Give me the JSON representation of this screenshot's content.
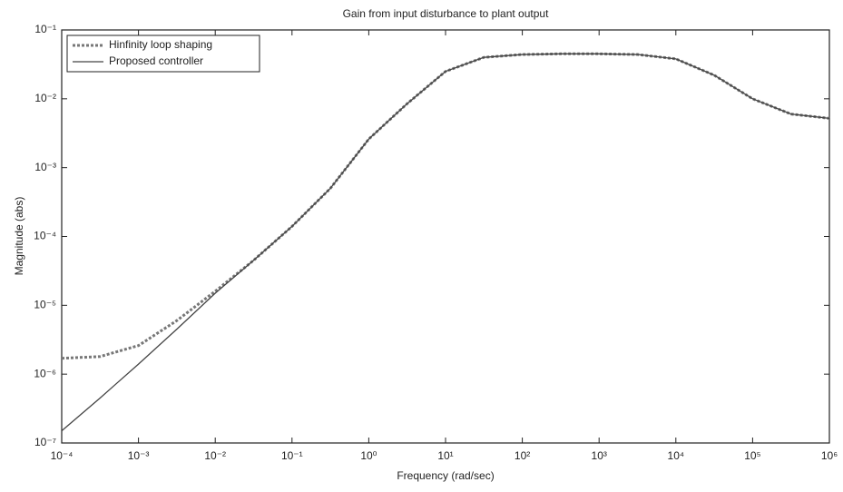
{
  "chart_data": {
    "type": "line",
    "title": "Gain from input disturbance to plant output",
    "x_label": "Frequency  (rad/sec)",
    "y_label": "Magnitude (abs)",
    "x_scale": "log",
    "y_scale": "log",
    "grid": false,
    "legend": "upper left",
    "x": [
      0.0001,
      0.000316,
      0.001,
      0.00316,
      0.01,
      0.0316,
      0.1,
      0.316,
      1,
      3.16,
      10,
      31.6,
      100,
      316,
      1000,
      3162,
      10000,
      31623,
      100000,
      316228,
      1000000
    ],
    "series": [
      {
        "name": "Hinfinity loop shaping",
        "color": "#777777",
        "dash": "dotted",
        "values": [
          1.7e-06,
          1.8e-06,
          2.6e-06,
          6e-06,
          1.6e-05,
          4.5e-05,
          0.00014,
          0.0005,
          0.0026,
          0.0085,
          0.025,
          0.04,
          0.044,
          0.045,
          0.045,
          0.044,
          0.038,
          0.022,
          0.01,
          0.006,
          0.0052
        ]
      },
      {
        "name": "Proposed controller",
        "color": "#444444",
        "dash": "solid",
        "values": [
          1.5e-07,
          4.5e-07,
          1.4e-06,
          4.5e-06,
          1.5e-05,
          4.5e-05,
          0.00014,
          0.0005,
          0.0026,
          0.0085,
          0.025,
          0.04,
          0.044,
          0.045,
          0.045,
          0.044,
          0.038,
          0.022,
          0.01,
          0.006,
          0.0052
        ]
      }
    ],
    "xlim": [
      0.0001,
      1000000
    ],
    "ylim": [
      1e-07,
      0.1
    ],
    "xticks": [
      {
        "value": 0.0001,
        "label": "10⁻⁴"
      },
      {
        "value": 0.001,
        "label": "10⁻³"
      },
      {
        "value": 0.01,
        "label": "10⁻²"
      },
      {
        "value": 0.1,
        "label": "10⁻¹"
      },
      {
        "value": 1,
        "label": "10⁰"
      },
      {
        "value": 10,
        "label": "10¹"
      },
      {
        "value": 100,
        "label": "10²"
      },
      {
        "value": 1000,
        "label": "10³"
      },
      {
        "value": 10000,
        "label": "10⁴"
      },
      {
        "value": 100000,
        "label": "10⁵"
      },
      {
        "value": 1000000,
        "label": "10⁶"
      }
    ],
    "yticks": [
      {
        "value": 1e-07,
        "label": "10⁻⁷"
      },
      {
        "value": 1e-06,
        "label": "10⁻⁶"
      },
      {
        "value": 1e-05,
        "label": "10⁻⁵"
      },
      {
        "value": 0.0001,
        "label": "10⁻⁴"
      },
      {
        "value": 0.001,
        "label": "10⁻³"
      },
      {
        "value": 0.01,
        "label": "10⁻²"
      },
      {
        "value": 0.1,
        "label": "10⁻¹"
      }
    ]
  }
}
